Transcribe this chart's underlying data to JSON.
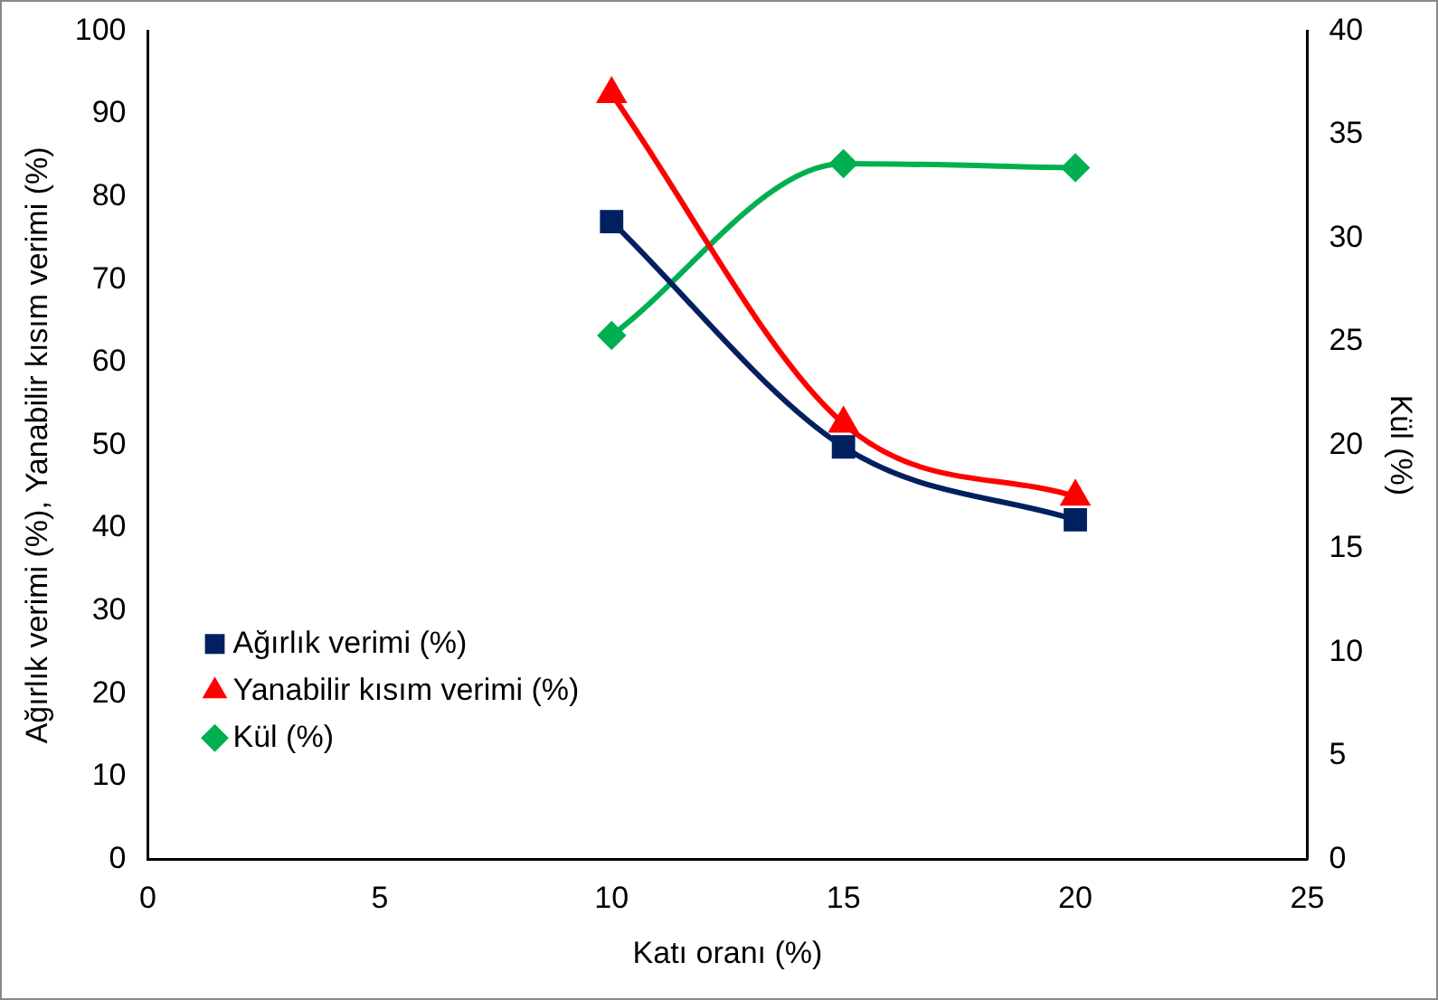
{
  "chart_data": {
    "type": "line",
    "xlabel": "Katı oranı (%)",
    "ylabel": "Ağırlık verimi (%), Yanabilir kısım verimi (%)",
    "y2label": "Kül (%)",
    "x": [
      10,
      15,
      20
    ],
    "series": [
      {
        "name": "Ağırlık verimi (%)",
        "color": "#002060",
        "values": [
          77,
          49.8,
          41
        ],
        "marker": "square"
      },
      {
        "name": "Yanabilir kısım verimi (%)",
        "color": "#ff0000",
        "values": [
          92.4,
          52.6,
          43.8
        ],
        "marker": "triangle"
      },
      {
        "name": "Kül (%)",
        "color": "#00b050",
        "values": [
          25.3,
          33.6,
          33.4
        ],
        "marker": "diamond",
        "axis": "y2"
      }
    ],
    "xlim": [
      0,
      25
    ],
    "xticks": [
      0,
      5,
      10,
      15,
      20,
      25
    ],
    "ylim": [
      0,
      100
    ],
    "yticks": [
      0,
      10,
      20,
      30,
      40,
      50,
      60,
      70,
      80,
      90,
      100
    ],
    "y2lim": [
      0,
      40
    ],
    "y2ticks": [
      0,
      5,
      10,
      15,
      20,
      25,
      30,
      35,
      40
    ],
    "grid": false,
    "legend": "bottom left"
  }
}
